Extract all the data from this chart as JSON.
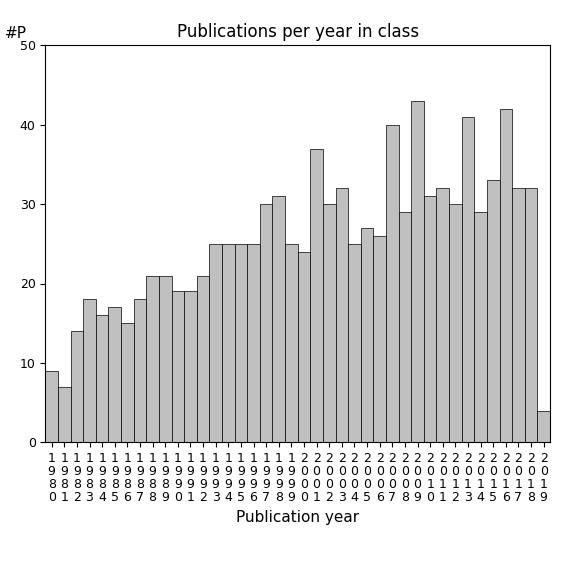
{
  "title": "Publications per year in class",
  "xlabel": "Publication year",
  "ylabel": "#P",
  "start_year": 1980,
  "values": [
    9,
    7,
    14,
    18,
    16,
    17,
    15,
    18,
    21,
    21,
    19,
    19,
    21,
    25,
    25,
    25,
    25,
    30,
    31,
    25,
    24,
    37,
    30,
    32,
    25,
    27,
    26,
    40,
    29,
    43,
    31,
    32,
    30,
    41,
    29,
    33,
    42,
    32,
    32,
    4
  ],
  "bar_color": "#c0c0c0",
  "bar_edge_color": "#000000",
  "ylim": [
    0,
    50
  ],
  "yticks": [
    0,
    10,
    20,
    30,
    40,
    50
  ],
  "background_color": "#ffffff",
  "title_fontsize": 12,
  "axis_fontsize": 11,
  "tick_fontsize": 9,
  "ylabel_fontsize": 11
}
